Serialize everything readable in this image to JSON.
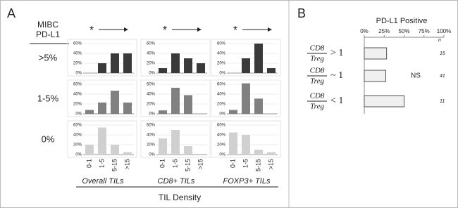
{
  "figure": {
    "panels": [
      "A",
      "B"
    ],
    "header": [
      "MIBC",
      "PD-L1"
    ],
    "rows": [
      ">5%",
      "1-5%",
      "0%"
    ],
    "columns": [
      "Overall TILs",
      "CD8+ TILs",
      "FOXP3+ TILs"
    ],
    "significance": [
      "*",
      "*",
      "*"
    ],
    "x_label": "TIL Density"
  },
  "chart_data": [
    {
      "type": "bar",
      "categories": [
        null,
        null,
        null,
        null
      ],
      "values": [
        0,
        20,
        40,
        40
      ],
      "color": "#3a3a3a",
      "ylim": [
        0,
        60
      ],
      "yticks": [
        {
          "value": 0,
          "label": "0%"
        },
        {
          "value": 20,
          "label": "20%"
        },
        {
          "value": 40,
          "label": "40%"
        },
        {
          "value": 60,
          "label": "60%"
        }
      ],
      "grid": true
    },
    {
      "type": "bar",
      "categories": [
        null,
        null,
        null,
        null
      ],
      "values": [
        10,
        40,
        30,
        20
      ],
      "color": "#3a3a3a",
      "ylim": [
        0,
        60
      ],
      "yticks": [
        {
          "value": 0,
          "label": "0%"
        },
        {
          "value": 20,
          "label": "20%"
        },
        {
          "value": 40,
          "label": "40%"
        },
        {
          "value": 60,
          "label": "60%"
        }
      ],
      "grid": true
    },
    {
      "type": "bar",
      "categories": [
        null,
        null,
        null,
        null
      ],
      "values": [
        0,
        30,
        60,
        10
      ],
      "color": "#3a3a3a",
      "ylim": [
        0,
        60
      ],
      "yticks": [
        {
          "value": 0,
          "label": "0%"
        },
        {
          "value": 20,
          "label": "20%"
        },
        {
          "value": 40,
          "label": "40%"
        },
        {
          "value": 60,
          "label": "60%"
        }
      ],
      "grid": true
    },
    {
      "type": "bar",
      "categories": [
        null,
        null,
        null,
        null
      ],
      "values": [
        8,
        23,
        47,
        23
      ],
      "color": "#808080",
      "ylim": [
        0,
        60
      ],
      "yticks": [
        {
          "value": 0,
          "label": "0%"
        },
        {
          "value": 20,
          "label": "20%"
        },
        {
          "value": 40,
          "label": "40%"
        },
        {
          "value": 60,
          "label": "60%"
        }
      ],
      "grid": true
    },
    {
      "type": "bar",
      "categories": [
        null,
        null,
        null,
        null
      ],
      "values": [
        7,
        53,
        38,
        0
      ],
      "color": "#808080",
      "ylim": [
        0,
        60
      ],
      "yticks": [
        {
          "value": 0,
          "label": "0%"
        },
        {
          "value": 20,
          "label": "20%"
        },
        {
          "value": 40,
          "label": "40%"
        },
        {
          "value": 60,
          "label": "60%"
        }
      ],
      "grid": true
    },
    {
      "type": "bar",
      "categories": [
        null,
        null,
        null,
        null
      ],
      "values": [
        8,
        62,
        31,
        0
      ],
      "color": "#808080",
      "ylim": [
        0,
        60
      ],
      "yticks": [
        {
          "value": 0,
          "label": "0%"
        },
        {
          "value": 20,
          "label": "20%"
        },
        {
          "value": 40,
          "label": "40%"
        },
        {
          "value": 60,
          "label": "60%"
        }
      ],
      "grid": true
    },
    {
      "type": "bar",
      "categories": [
        "0-1",
        "1-5",
        "5-15",
        ">15"
      ],
      "values": [
        20,
        55,
        20,
        5
      ],
      "color": "#d0d0d0",
      "ylim": [
        0,
        60
      ],
      "yticks": [
        {
          "value": 0,
          "label": "0%"
        },
        {
          "value": 20,
          "label": "20%"
        },
        {
          "value": 40,
          "label": "40%"
        },
        {
          "value": 60,
          "label": "60%"
        }
      ],
      "grid": true
    },
    {
      "type": "bar",
      "categories": [
        "0-1",
        "1-5",
        "5-15",
        ">15"
      ],
      "values": [
        33,
        50,
        17,
        0
      ],
      "color": "#d0d0d0",
      "ylim": [
        0,
        60
      ],
      "yticks": [
        {
          "value": 0,
          "label": "0%"
        },
        {
          "value": 20,
          "label": "20%"
        },
        {
          "value": 40,
          "label": "40%"
        },
        {
          "value": 60,
          "label": "60%"
        }
      ],
      "grid": true
    },
    {
      "type": "bar",
      "categories": [
        "0-1",
        "1-5",
        "5-15",
        ">15"
      ],
      "values": [
        45,
        40,
        10,
        5
      ],
      "color": "#d0d0d0",
      "ylim": [
        0,
        60
      ],
      "yticks": [
        {
          "value": 0,
          "label": "0%"
        },
        {
          "value": 20,
          "label": "20%"
        },
        {
          "value": 40,
          "label": "40%"
        },
        {
          "value": 60,
          "label": "60%"
        }
      ],
      "grid": true
    },
    {
      "type": "barh",
      "title": "PD-L1 Positive",
      "categories": [
        {
          "num": "CD8",
          "den": "Treg",
          "rel": "> 1"
        },
        {
          "num": "CD8",
          "den": "Treg",
          "rel": "~ 1"
        },
        {
          "num": "CD8",
          "den": "Treg",
          "rel": "< 1"
        }
      ],
      "values": [
        28,
        27,
        50
      ],
      "color": "#f0f0f0",
      "xlim": [
        0,
        100
      ],
      "xticks": [
        {
          "value": 0,
          "label": "0%"
        },
        {
          "value": 25,
          "label": "25%"
        },
        {
          "value": 50,
          "label": "50%"
        },
        {
          "value": 75,
          "label": "75%"
        },
        {
          "value": 100,
          "label": "100%"
        }
      ],
      "n_label": "n",
      "n_values": [
        15,
        41,
        11
      ],
      "annotation": "NS"
    }
  ]
}
